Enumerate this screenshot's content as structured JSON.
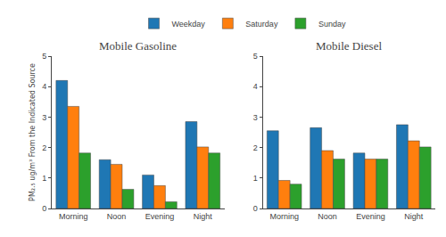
{
  "chart_data": [
    {
      "type": "bar",
      "title": "Mobile Gasoline",
      "categories": [
        "Morning",
        "Noon",
        "Evening",
        "Night"
      ],
      "series": [
        {
          "name": "Weekday",
          "color": "#1f77b4",
          "values": [
            4.2,
            1.6,
            1.1,
            2.85
          ]
        },
        {
          "name": "Saturday",
          "color": "#ff7f0e",
          "values": [
            3.35,
            1.45,
            0.75,
            2.02
          ]
        },
        {
          "name": "Sunday",
          "color": "#2ca02c",
          "values": [
            1.82,
            0.63,
            0.22,
            1.82
          ]
        }
      ],
      "ylabel": "PM₂.₅ ug/m³ From the Indicated Source",
      "ylim": [
        0,
        5
      ],
      "yticks": [
        0,
        1,
        2,
        3,
        4,
        5
      ],
      "grid": false,
      "legend": "top"
    },
    {
      "type": "bar",
      "title": "Mobile Diesel",
      "categories": [
        "Morning",
        "Noon",
        "Evening",
        "Night"
      ],
      "series": [
        {
          "name": "Weekday",
          "color": "#1f77b4",
          "values": [
            2.55,
            2.65,
            1.82,
            2.75
          ]
        },
        {
          "name": "Saturday",
          "color": "#ff7f0e",
          "values": [
            0.92,
            1.9,
            1.62,
            2.22
          ]
        },
        {
          "name": "Sunday",
          "color": "#2ca02c",
          "values": [
            0.8,
            1.62,
            1.62,
            2.02
          ]
        }
      ],
      "ylim": [
        0,
        5
      ],
      "yticks": [
        0,
        1,
        2,
        3,
        4,
        5
      ],
      "grid": false
    }
  ]
}
